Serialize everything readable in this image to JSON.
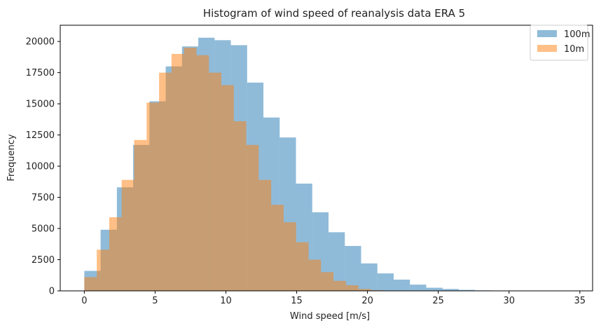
{
  "chart_data": {
    "type": "histogram",
    "title": "Histogram of wind speed of reanalysis data ERA 5",
    "xlabel": "Wind speed [m/s]",
    "ylabel": "Frequency",
    "xlim": [
      -1.7,
      35.9
    ],
    "ylim": [
      0,
      21300
    ],
    "xticks": [
      0,
      5,
      10,
      15,
      20,
      25,
      30,
      35
    ],
    "yticks": [
      0,
      2500,
      5000,
      7500,
      10000,
      12500,
      15000,
      17500,
      20000
    ],
    "grid": false,
    "legend_position": "top-right",
    "series": [
      {
        "name": "100m",
        "color": "#1f77b4",
        "alpha": 0.5,
        "bin_edges": [
          0,
          1.15,
          2.3,
          3.45,
          4.6,
          5.75,
          6.9,
          8.05,
          9.2,
          10.35,
          11.5,
          12.65,
          13.8,
          14.95,
          16.1,
          17.25,
          18.4,
          19.55,
          20.7,
          21.85,
          23.0,
          24.15,
          25.3,
          26.45,
          27.6,
          28.75,
          29.9,
          31.05,
          32.2,
          33.35,
          34.5
        ],
        "counts": [
          1600,
          4900,
          8300,
          11700,
          15200,
          18000,
          19600,
          20300,
          20100,
          19700,
          16700,
          13900,
          12300,
          8600,
          6300,
          4700,
          3600,
          2200,
          1400,
          900,
          500,
          250,
          150,
          80,
          40,
          20,
          10,
          5,
          2,
          1
        ]
      },
      {
        "name": "10m",
        "color": "#ff7f0e",
        "alpha": 0.5,
        "bin_edges": [
          0,
          0.88,
          1.76,
          2.64,
          3.52,
          4.4,
          5.28,
          6.16,
          7.04,
          7.92,
          8.8,
          9.68,
          10.56,
          11.44,
          12.32,
          13.2,
          14.08,
          14.96,
          15.84,
          16.72,
          17.6,
          18.48,
          19.36,
          20.24,
          21.12
        ],
        "counts": [
          1100,
          3300,
          5900,
          8900,
          12100,
          15100,
          17500,
          19000,
          19500,
          18900,
          17500,
          16500,
          13600,
          11700,
          8900,
          6900,
          5500,
          3900,
          2500,
          1500,
          800,
          450,
          150,
          50
        ]
      }
    ]
  }
}
